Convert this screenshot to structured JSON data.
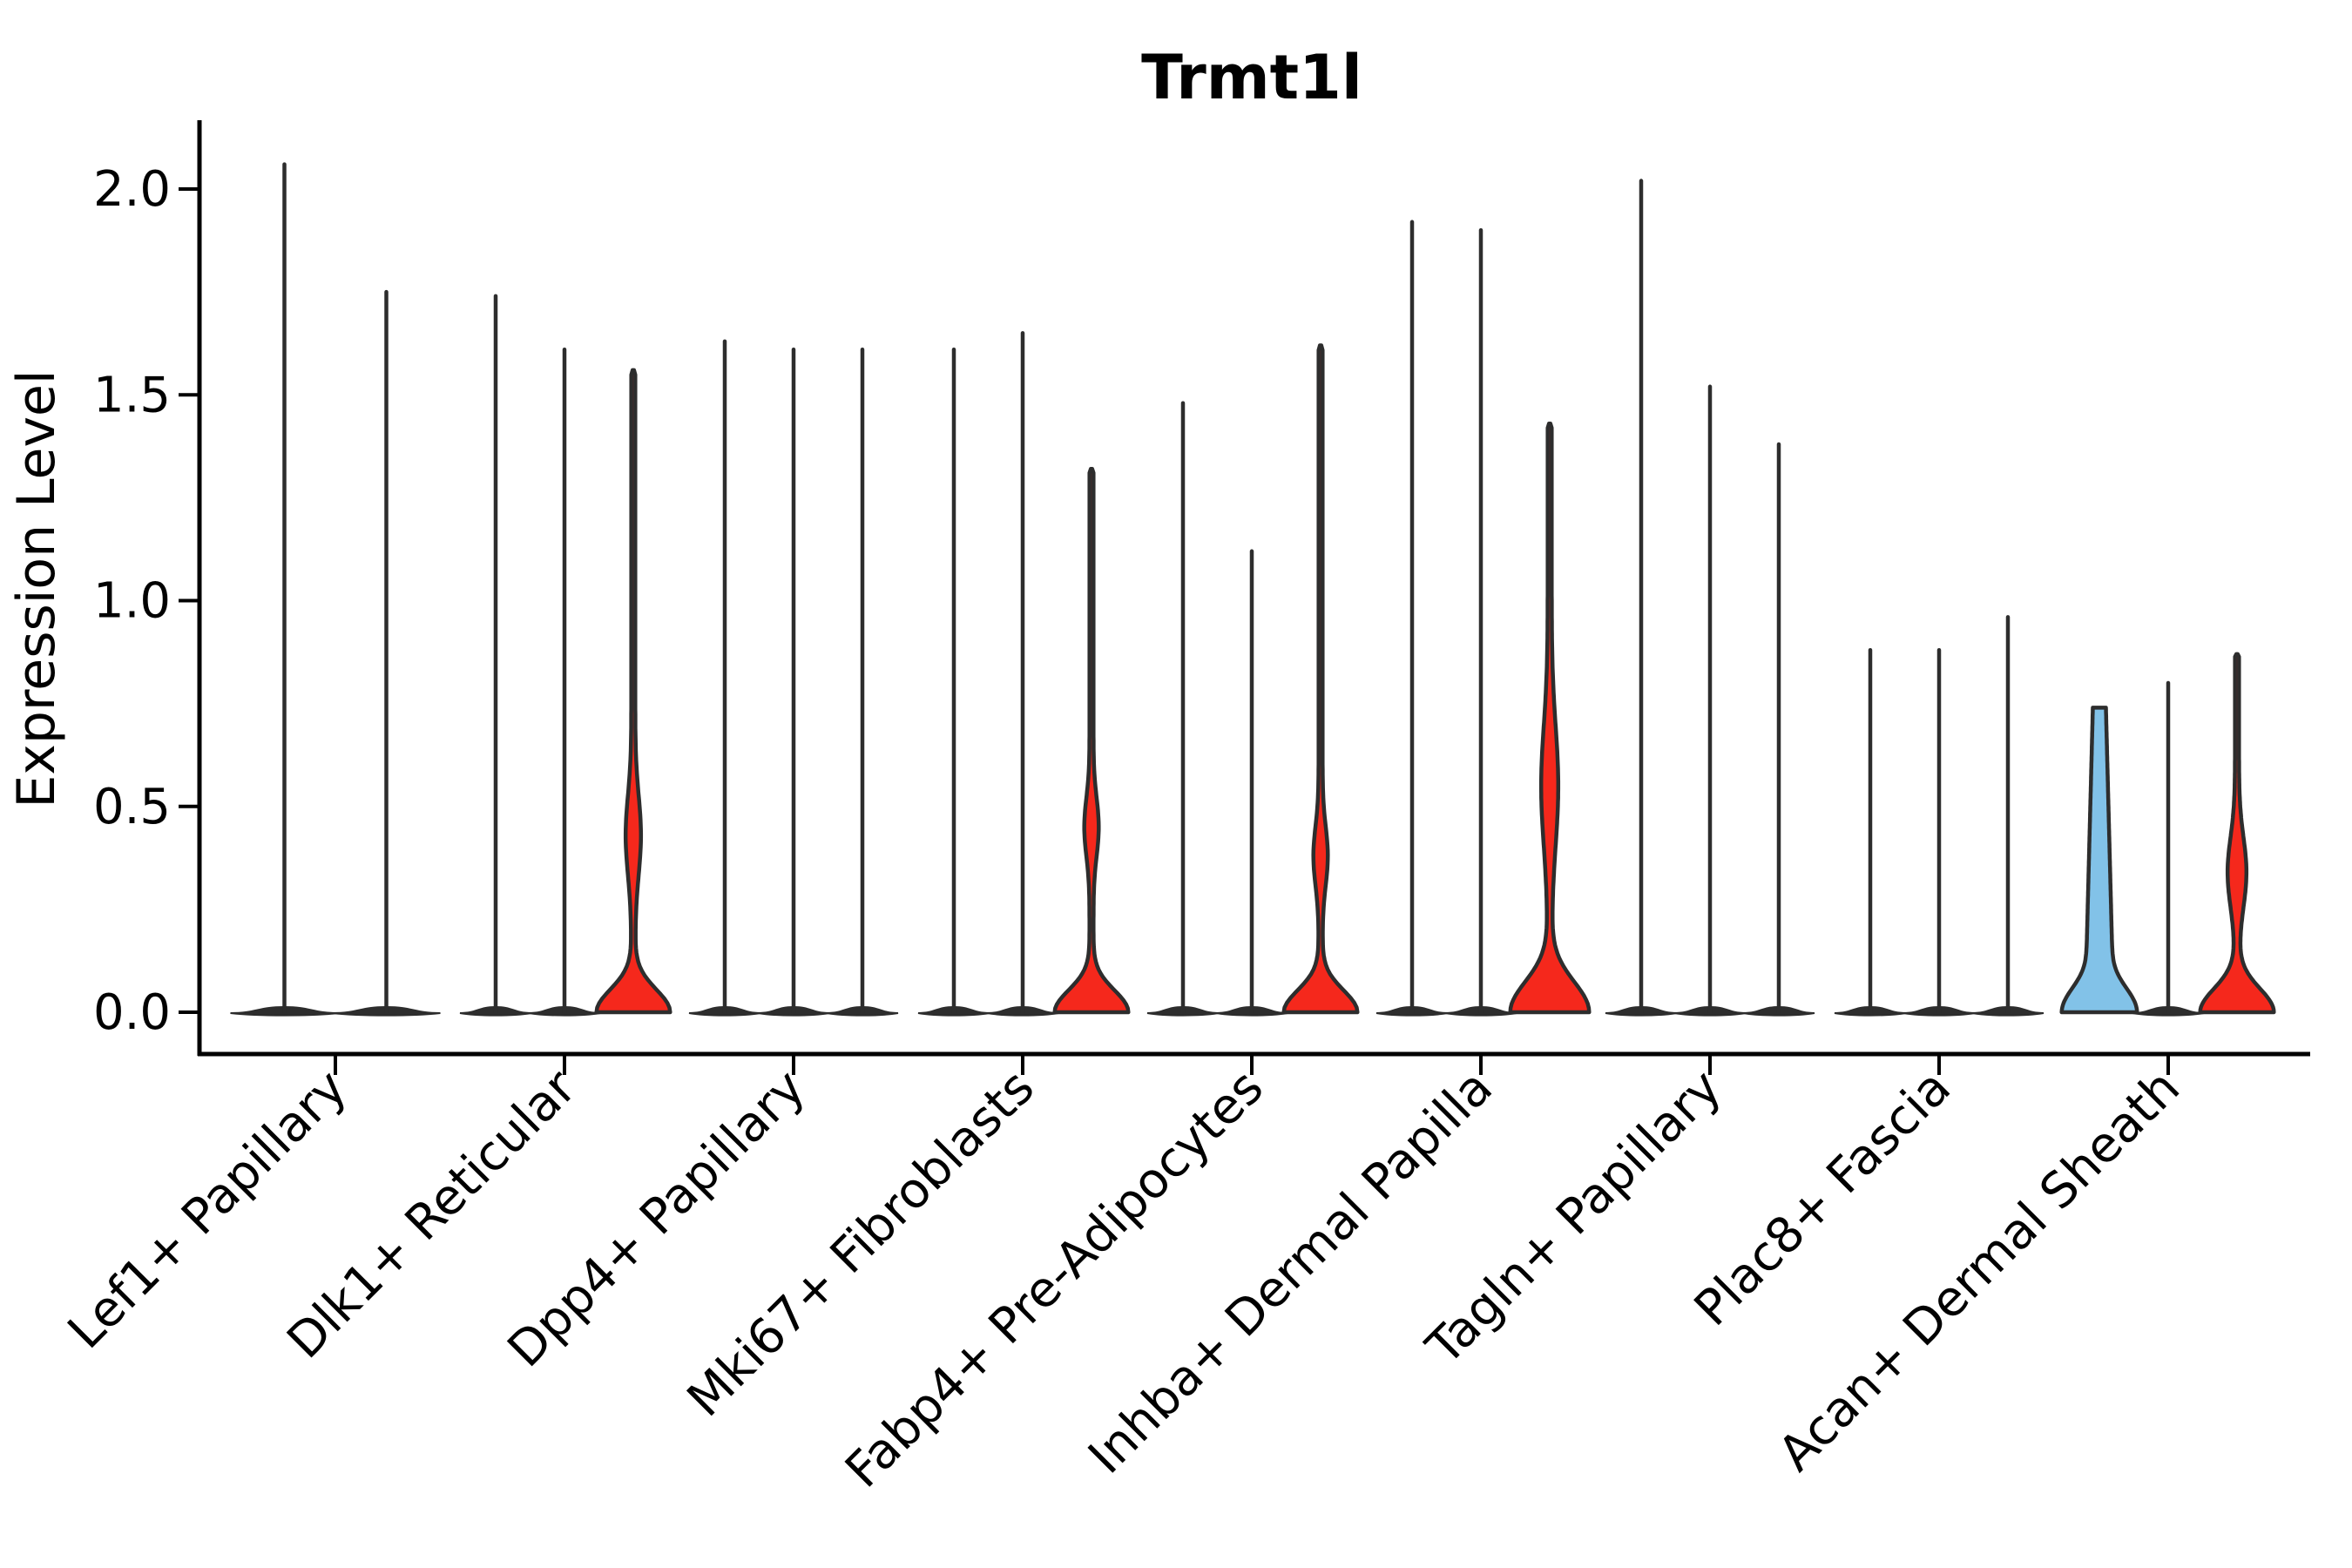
{
  "title": "Trmt1l",
  "chart_data": {
    "type": "violin",
    "title": "Trmt1l",
    "xlabel": "",
    "ylabel": "Expression Level",
    "ylim": [
      -0.1,
      2.16
    ],
    "grid": false,
    "legend": "none",
    "yticks": [
      {
        "value": 0.0,
        "label": "0.0"
      },
      {
        "value": 0.5,
        "label": "0.5"
      },
      {
        "value": 1.0,
        "label": "1.0"
      },
      {
        "value": 1.5,
        "label": "1.5"
      },
      {
        "value": 2.0,
        "label": "2.0"
      }
    ],
    "xticklabel_rotation": 45,
    "categories": [
      "Lef1+ Papillary",
      "Dlk1+ Reticular",
      "Dpp4+ Papillary",
      "Mki67+ Fibroblasts",
      "Fabp4+ Pre-Adipocytes",
      "Inhba+ Dermal Papilla",
      "Tagln+ Papillary",
      "Plac8+ Fascia",
      "Acan+ Dermal Sheath"
    ],
    "colors": {
      "outline": "#2d2d2d",
      "highlight_red": "#f5281c",
      "highlight_blue": "#82c2e8",
      "axis": "#000000"
    },
    "groups": [
      {
        "category": "Lef1+ Papillary",
        "violins": [
          {
            "max": 2.06,
            "type": "plain"
          },
          {
            "max": 1.75,
            "type": "plain"
          }
        ]
      },
      {
        "category": "Dlk1+ Reticular",
        "violins": [
          {
            "max": 1.74,
            "type": "plain"
          },
          {
            "max": 1.61,
            "type": "plain"
          },
          {
            "max": 1.56,
            "type": "red",
            "bulge": {
              "center": 0.43,
              "half": 0.19,
              "width": 6.5
            },
            "base": {
              "half": 40,
              "height": 0.135
            }
          }
        ]
      },
      {
        "category": "Dpp4+ Papillary",
        "violins": [
          {
            "max": 1.63,
            "type": "plain"
          },
          {
            "max": 1.61,
            "type": "plain"
          },
          {
            "max": 1.61,
            "type": "plain"
          }
        ]
      },
      {
        "category": "Mki67+ Fibroblasts",
        "violins": [
          {
            "max": 1.61,
            "type": "plain"
          },
          {
            "max": 1.65,
            "type": "plain"
          },
          {
            "max": 1.32,
            "type": "red",
            "bulge": {
              "center": 0.45,
              "half": 0.14,
              "width": 6.0
            },
            "base": {
              "half": 40,
              "height": 0.13
            }
          }
        ]
      },
      {
        "category": "Fabp4+ Pre-Adipocytes",
        "violins": [
          {
            "max": 1.48,
            "type": "plain"
          },
          {
            "max": 1.12,
            "type": "plain"
          },
          {
            "max": 1.62,
            "type": "red",
            "bulge": {
              "center": 0.38,
              "half": 0.14,
              "width": 6.0
            },
            "base": {
              "half": 40,
              "height": 0.13
            }
          }
        ]
      },
      {
        "category": "Inhba+ Dermal Papilla",
        "violins": [
          {
            "max": 1.92,
            "type": "plain"
          },
          {
            "max": 1.9,
            "type": "plain"
          },
          {
            "max": 1.43,
            "type": "red",
            "bulge": {
              "center": 0.55,
              "half": 0.29,
              "width": 7.5
            },
            "base": {
              "half": 43,
              "height": 0.18
            }
          }
        ]
      },
      {
        "category": "Tagln+ Papillary",
        "violins": [
          {
            "max": 2.02,
            "type": "plain"
          },
          {
            "max": 1.52,
            "type": "plain"
          },
          {
            "max": 1.38,
            "type": "plain"
          }
        ]
      },
      {
        "category": "Plac8+ Fascia",
        "violins": [
          {
            "max": 0.88,
            "type": "plain"
          },
          {
            "max": 0.88,
            "type": "plain"
          },
          {
            "max": 0.96,
            "type": "plain"
          }
        ]
      },
      {
        "category": "Acan+ Dermal Sheath",
        "violins": [
          {
            "max": 0.74,
            "type": "blue",
            "base": {
              "half": 40,
              "height": 0.16
            }
          },
          {
            "max": 0.8,
            "type": "plain"
          },
          {
            "max": 0.87,
            "type": "red",
            "bulge": {
              "center": 0.34,
              "half": 0.17,
              "width": 8.5
            },
            "base": {
              "half": 40,
              "height": 0.14
            }
          }
        ]
      }
    ]
  }
}
